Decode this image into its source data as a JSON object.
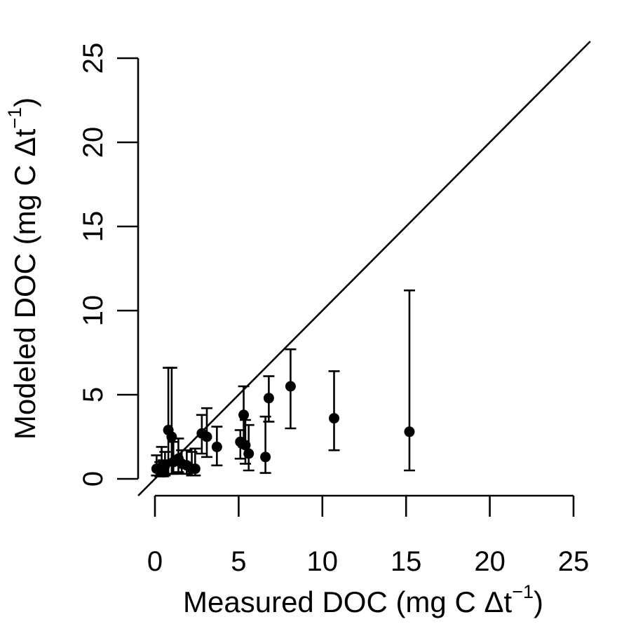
{
  "chart_data": {
    "type": "scatter",
    "title": "",
    "xlabel": {
      "main": "Measured DOC (mg C Δt",
      "sup": "−1",
      "close": ")"
    },
    "ylabel": {
      "main": "Modeled DOC (mg C Δt",
      "sup": "−1",
      "close": ")"
    },
    "xlim": [
      0,
      25
    ],
    "ylim": [
      0,
      25
    ],
    "xticks": [
      "0",
      "5",
      "10",
      "15",
      "20",
      "25"
    ],
    "yticks": [
      "0",
      "5",
      "10",
      "15",
      "20",
      "25"
    ],
    "grid": false,
    "legend": "none",
    "reference_line": "1:1",
    "points": [
      {
        "x": 0.1,
        "y": 0.6,
        "lo": 0.2,
        "hi": 1.4
      },
      {
        "x": 0.3,
        "y": 0.5,
        "lo": 0.15,
        "hi": 1.0
      },
      {
        "x": 0.4,
        "y": 0.7,
        "lo": 0.2,
        "hi": 1.9
      },
      {
        "x": 0.5,
        "y": 0.4,
        "lo": 0.15,
        "hi": 1.1
      },
      {
        "x": 0.6,
        "y": 0.8,
        "lo": 0.2,
        "hi": 1.6
      },
      {
        "x": 0.8,
        "y": 2.9,
        "lo": 0.3,
        "hi": 6.6
      },
      {
        "x": 1.0,
        "y": 2.5,
        "lo": 0.3,
        "hi": 6.6
      },
      {
        "x": 1.1,
        "y": 1.0,
        "lo": 0.3,
        "hi": 2.2
      },
      {
        "x": 1.4,
        "y": 1.2,
        "lo": 0.4,
        "hi": 2.4
      },
      {
        "x": 1.6,
        "y": 0.9,
        "lo": 0.3,
        "hi": 1.7
      },
      {
        "x": 1.9,
        "y": 0.8,
        "lo": 0.3,
        "hi": 1.7
      },
      {
        "x": 2.2,
        "y": 0.6,
        "lo": 0.2,
        "hi": 1.6
      },
      {
        "x": 2.4,
        "y": 0.6,
        "lo": 0.2,
        "hi": 1.8
      },
      {
        "x": 2.8,
        "y": 2.7,
        "lo": 1.5,
        "hi": 3.8
      },
      {
        "x": 3.1,
        "y": 2.5,
        "lo": 1.3,
        "hi": 4.2
      },
      {
        "x": 3.7,
        "y": 1.9,
        "lo": 0.8,
        "hi": 3.1
      },
      {
        "x": 5.1,
        "y": 2.2,
        "lo": 1.2,
        "hi": 2.9
      },
      {
        "x": 5.3,
        "y": 3.8,
        "lo": 1.9,
        "hi": 5.5
      },
      {
        "x": 5.4,
        "y": 2.0,
        "lo": 0.9,
        "hi": 3.5
      },
      {
        "x": 5.6,
        "y": 1.5,
        "lo": 0.5,
        "hi": 3.2
      },
      {
        "x": 6.6,
        "y": 1.3,
        "lo": 0.35,
        "hi": 3.7
      },
      {
        "x": 6.8,
        "y": 4.8,
        "lo": 3.4,
        "hi": 6.1
      },
      {
        "x": 8.1,
        "y": 5.5,
        "lo": 3.0,
        "hi": 7.7
      },
      {
        "x": 10.7,
        "y": 3.6,
        "lo": 1.7,
        "hi": 6.4
      },
      {
        "x": 15.2,
        "y": 2.8,
        "lo": 0.5,
        "hi": 11.2
      }
    ]
  }
}
